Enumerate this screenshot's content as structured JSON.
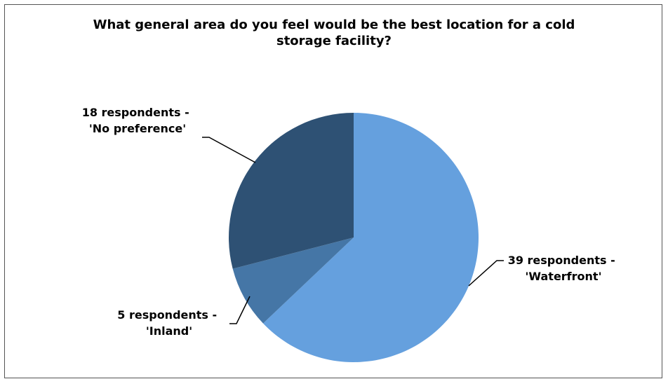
{
  "chart_data": {
    "type": "pie",
    "title_lines": [
      "What general area do you feel would be the best location for a cold",
      "storage facility?"
    ],
    "slices": [
      {
        "label_lines": [
          "39 respondents -",
          "'Waterfront'"
        ],
        "value": 39,
        "color": "#65a0de"
      },
      {
        "label_lines": [
          "5 respondents -",
          "'Inland'"
        ],
        "value": 5,
        "color": "#4576a6"
      },
      {
        "label_lines": [
          "18 respondents -",
          "'No preference'"
        ],
        "value": 18,
        "color": "#2e5174"
      }
    ],
    "legend": "none"
  }
}
